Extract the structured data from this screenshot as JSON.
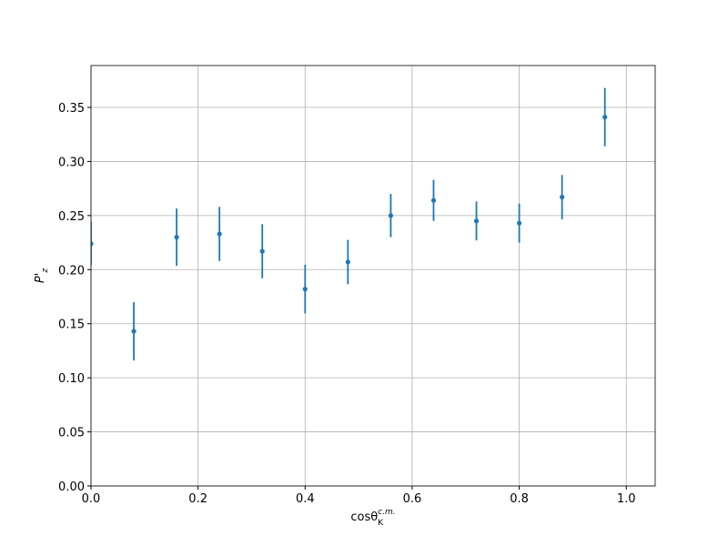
{
  "chart_data": {
    "type": "errorbar-scatter",
    "xlabel": {
      "base": "cosθ",
      "sub": "K",
      "sup": "c.m."
    },
    "ylabel": {
      "base": "P'",
      "sub": "z"
    },
    "x": [
      0,
      0.08,
      0.16,
      0.24,
      0.32,
      0.4,
      0.48,
      0.56,
      0.64,
      0.72,
      0.8,
      0.88,
      0.96
    ],
    "series": [
      {
        "color": "#1f77b4",
        "values": [
          0.224,
          0.143,
          0.23,
          0.233,
          0.217,
          0.182,
          0.207,
          0.25,
          0.264,
          0.245,
          0.243,
          0.267,
          0.341
        ],
        "errors": [
          0.02,
          0.027,
          0.0265,
          0.025,
          0.025,
          0.0225,
          0.0205,
          0.02,
          0.019,
          0.018,
          0.018,
          0.0205,
          0.027
        ]
      }
    ],
    "xlim": [
      0,
      1.054
    ],
    "ylim": [
      0,
      0.3887
    ],
    "xticks": [
      {
        "value": 0,
        "label": "0.0"
      },
      {
        "value": 0.2,
        "label": "0.2"
      },
      {
        "value": 0.4,
        "label": "0.4"
      },
      {
        "value": 0.6,
        "label": "0.6"
      },
      {
        "value": 0.8,
        "label": "0.8"
      },
      {
        "value": 1.0,
        "label": "1.0"
      }
    ],
    "yticks": [
      {
        "value": 0,
        "label": "0.00"
      },
      {
        "value": 0.05,
        "label": "0.05"
      },
      {
        "value": 0.1,
        "label": "0.10"
      },
      {
        "value": 0.15,
        "label": "0.15"
      },
      {
        "value": 0.2,
        "label": "0.20"
      },
      {
        "value": 0.25,
        "label": "0.25"
      },
      {
        "value": 0.3,
        "label": "0.30"
      },
      {
        "value": 0.35,
        "label": "0.35"
      }
    ],
    "grid": true
  }
}
